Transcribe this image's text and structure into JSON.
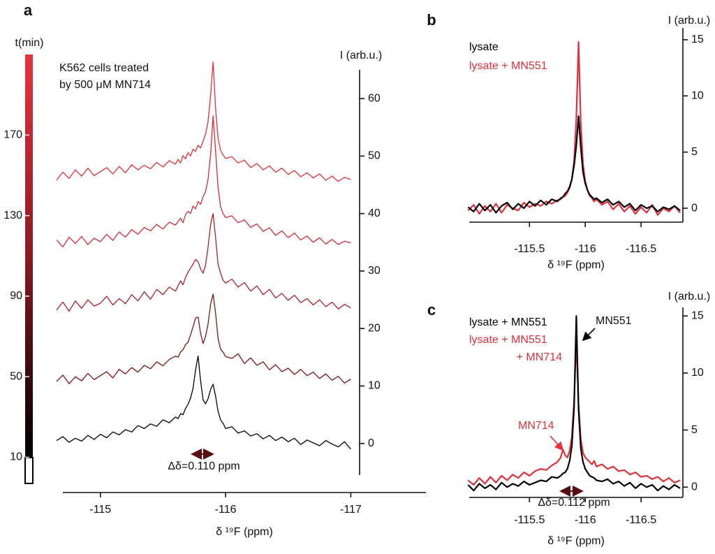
{
  "chart_data": [
    {
      "type": "line",
      "panel": "a",
      "xlabel": "δ ¹⁹F (ppm)",
      "ylabel": "I (arb.u.)",
      "annotations": [
        "K562 cells treated",
        "by 500 μM MN714",
        "Δδ=0.110 ppm"
      ],
      "xlim": [
        -114.7,
        -117.6
      ],
      "xticks": [
        -115,
        -116,
        -117
      ],
      "ylim": [
        -5.5,
        65
      ],
      "yticks": [
        0,
        10,
        20,
        30,
        40,
        50,
        60
      ],
      "colorbar": {
        "label": "t(min)",
        "ticks": [
          10,
          50,
          90,
          130,
          170
        ],
        "lim": [
          -3,
          210
        ]
      },
      "x": [
        -114.65,
        -114.7,
        -114.75,
        -114.8,
        -114.85,
        -114.9,
        -114.95,
        -115,
        -115.05,
        -115.1,
        -115.15,
        -115.2,
        -115.25,
        -115.3,
        -115.35,
        -115.4,
        -115.45,
        -115.5,
        -115.55,
        -115.6,
        -115.62,
        -115.64,
        -115.66,
        -115.68,
        -115.7,
        -115.72,
        -115.74,
        -115.76,
        -115.78,
        -115.8,
        -115.82,
        -115.84,
        -115.86,
        -115.88,
        -115.9,
        -115.92,
        -115.94,
        -115.96,
        -115.98,
        -116,
        -116.05,
        -116.1,
        -116.15,
        -116.2,
        -116.25,
        -116.3,
        -116.35,
        -116.4,
        -116.45,
        -116.5,
        -116.55,
        -116.6,
        -116.65,
        -116.7,
        -116.75,
        -116.8,
        -116.85,
        -116.9,
        -116.95,
        -117
      ],
      "series": [
        {
          "color": "#000000",
          "values": [
            0.5,
            1.2,
            0.2,
            0.9,
            0.4,
            1.4,
            0.7,
            1.6,
            1.0,
            2.0,
            1.5,
            2.4,
            2.0,
            3.1,
            2.6,
            3.4,
            3.0,
            4.1,
            3.6,
            4.6,
            4.3,
            5.2,
            5.0,
            6.1,
            6.8,
            7.9,
            9.6,
            12.8,
            15.2,
            11.0,
            7.6,
            6.9,
            7.8,
            9.4,
            10.3,
            8.2,
            5.6,
            4.1,
            3.5,
            2.6,
            2.9,
            1.8,
            2.2,
            1.3,
            1.7,
            0.8,
            1.4,
            0.5,
            1.1,
            0.3,
            0.9,
            -0.2,
            0.6,
            0.1,
            -0.4,
            0.5,
            -0.1,
            -0.6,
            0.3,
            -1.0
          ]
        },
        {
          "color": "#7a1418",
          "values": [
            10.8,
            11.9,
            10.4,
            11.6,
            10.9,
            12.2,
            11.1,
            11.8,
            12.5,
            11.4,
            12.9,
            12.1,
            13.2,
            12.4,
            13.6,
            13.0,
            14.2,
            13.5,
            14.6,
            15.2,
            15.0,
            15.9,
            16.3,
            17.2,
            17.6,
            18.9,
            20.3,
            21.8,
            22.0,
            19.2,
            17.4,
            18.6,
            20.8,
            24.2,
            26.0,
            22.6,
            18.3,
            16.4,
            15.9,
            15.1,
            14.8,
            15.6,
            13.9,
            14.9,
            13.6,
            14.2,
            12.8,
            13.7,
            12.5,
            13.1,
            12.0,
            12.9,
            11.8,
            12.4,
            11.3,
            12.1,
            11.0,
            11.7,
            10.5,
            11.2
          ]
        },
        {
          "color": "#a8202a",
          "values": [
            23.2,
            24.6,
            23.0,
            24.8,
            23.5,
            25.0,
            23.9,
            24.4,
            25.6,
            24.1,
            25.2,
            24.3,
            25.9,
            24.8,
            26.4,
            25.1,
            26.8,
            25.9,
            27.2,
            26.5,
            27.4,
            28.3,
            27.6,
            28.9,
            29.8,
            30.5,
            31.2,
            32.0,
            31.6,
            30.4,
            29.6,
            31.0,
            34.2,
            38.1,
            40.0,
            35.8,
            31.2,
            29.6,
            28.4,
            27.9,
            28.6,
            27.2,
            28.0,
            26.5,
            27.4,
            25.9,
            26.8,
            25.3,
            26.1,
            24.9,
            25.8,
            24.5,
            25.2,
            24.1,
            25.0,
            23.8,
            24.6,
            23.4,
            24.2,
            23.6
          ]
        },
        {
          "color": "#d42b35",
          "values": [
            35.4,
            34.2,
            35.9,
            34.8,
            36.0,
            34.6,
            35.7,
            35.1,
            36.4,
            35.3,
            36.8,
            35.9,
            37.2,
            36.4,
            37.6,
            37.0,
            38.1,
            37.3,
            38.5,
            38.0,
            38.6,
            39.2,
            38.4,
            39.8,
            40.4,
            40.0,
            41.3,
            40.8,
            42.1,
            41.6,
            42.9,
            43.8,
            46.0,
            50.2,
            57.0,
            50.8,
            44.6,
            41.2,
            40.0,
            39.3,
            39.6,
            38.4,
            38.9,
            37.6,
            38.2,
            36.9,
            37.5,
            36.2,
            37.0,
            35.8,
            36.6,
            35.4,
            36.1,
            35.0,
            35.8,
            34.7,
            35.5,
            34.6,
            35.2,
            34.9
          ]
        },
        {
          "color": "#e0303a",
          "values": [
            45.8,
            47.2,
            46.1,
            47.6,
            46.5,
            47.9,
            46.6,
            47.3,
            48.0,
            46.9,
            48.2,
            47.1,
            48.5,
            47.6,
            48.4,
            47.8,
            48.9,
            48.1,
            49.2,
            48.6,
            49.4,
            48.8,
            50.1,
            49.5,
            50.6,
            50.0,
            51.2,
            50.8,
            51.9,
            51.4,
            52.6,
            53.8,
            56.0,
            60.5,
            66.4,
            58.2,
            53.1,
            51.0,
            50.2,
            49.6,
            49.9,
            48.8,
            49.3,
            48.0,
            48.7,
            47.6,
            48.3,
            47.2,
            47.9,
            46.8,
            47.5,
            46.4,
            47.1,
            46.2,
            46.9,
            45.8,
            46.5,
            45.6,
            46.3,
            45.9
          ]
        }
      ]
    },
    {
      "type": "line",
      "panel": "b",
      "xlabel": "δ ¹⁹F (ppm)",
      "ylabel": "I (arb.u.)",
      "xlim": [
        -114.96,
        -116.875
      ],
      "xticks": [
        -115.5,
        -116,
        -116.5
      ],
      "ylim": [
        -1.24,
        16.05
      ],
      "yticks": [
        0,
        5,
        10,
        15
      ],
      "x": [
        -114.95,
        -115,
        -115.05,
        -115.1,
        -115.15,
        -115.2,
        -115.25,
        -115.3,
        -115.35,
        -115.4,
        -115.45,
        -115.5,
        -115.55,
        -115.6,
        -115.65,
        -115.7,
        -115.75,
        -115.78,
        -115.8,
        -115.82,
        -115.84,
        -115.86,
        -115.88,
        -115.9,
        -115.92,
        -115.94,
        -115.96,
        -115.98,
        -116,
        -116.02,
        -116.04,
        -116.06,
        -116.08,
        -116.1,
        -116.15,
        -116.2,
        -116.25,
        -116.3,
        -116.35,
        -116.4,
        -116.45,
        -116.5,
        -116.55,
        -116.6,
        -116.65,
        -116.7,
        -116.75,
        -116.8,
        -116.85
      ],
      "series": [
        {
          "name": [
            "lysate + MN551"
          ],
          "color": "#e0303a",
          "values": [
            -0.2,
            0.3,
            -0.5,
            0.2,
            -0.3,
            0.4,
            -0.4,
            0.3,
            0.0,
            -0.2,
            0.5,
            0.1,
            0.4,
            0.2,
            0.6,
            0.4,
            0.7,
            0.8,
            1.0,
            1.1,
            1.4,
            1.8,
            2.6,
            4.2,
            8.0,
            14.8,
            7.6,
            3.9,
            2.4,
            1.6,
            1.1,
            0.9,
            0.6,
            0.8,
            0.3,
            0.6,
            -0.1,
            0.4,
            -0.3,
            0.2,
            -0.5,
            0.1,
            -0.4,
            0.3,
            -0.6,
            0.0,
            -0.3,
            0.2,
            -0.4
          ]
        },
        {
          "name": [
            "lysate"
          ],
          "color": "#000000",
          "values": [
            0.1,
            -0.3,
            0.4,
            -0.2,
            0.3,
            -0.4,
            0.2,
            0.5,
            -0.1,
            0.4,
            0.0,
            0.6,
            0.2,
            0.7,
            0.3,
            0.8,
            0.6,
            0.9,
            1.0,
            1.3,
            1.5,
            1.9,
            2.6,
            3.8,
            5.6,
            8.2,
            5.4,
            3.2,
            2.2,
            1.6,
            1.2,
            1.0,
            0.8,
            0.9,
            0.5,
            0.8,
            0.3,
            0.6,
            0.1,
            0.4,
            -0.2,
            0.3,
            0.0,
            0.2,
            -0.3,
            0.1,
            -0.1,
            0.2,
            -0.2
          ]
        }
      ]
    },
    {
      "type": "line",
      "panel": "c",
      "xlabel": "δ ¹⁹F (ppm)",
      "ylabel": "I (arb.u.)",
      "annotations": [
        "MN551",
        "MN714",
        "Δδ=0.112 ppm"
      ],
      "xlim": [
        -114.96,
        -116.875
      ],
      "xticks": [
        -115.5,
        -116,
        -116.5
      ],
      "ylim": [
        -0.9,
        15.75
      ],
      "yticks": [
        0,
        5,
        10,
        15
      ],
      "x": [
        -114.95,
        -115,
        -115.05,
        -115.1,
        -115.15,
        -115.2,
        -115.25,
        -115.3,
        -115.35,
        -115.4,
        -115.45,
        -115.5,
        -115.55,
        -115.6,
        -115.65,
        -115.7,
        -115.75,
        -115.78,
        -115.8,
        -115.82,
        -115.84,
        -115.86,
        -115.88,
        -115.9,
        -115.92,
        -115.94,
        -115.96,
        -115.98,
        -116,
        -116.02,
        -116.04,
        -116.06,
        -116.08,
        -116.1,
        -116.15,
        -116.2,
        -116.25,
        -116.3,
        -116.35,
        -116.4,
        -116.45,
        -116.5,
        -116.55,
        -116.6,
        -116.65,
        -116.7,
        -116.75,
        -116.8,
        -116.85
      ],
      "series": [
        {
          "name": [
            "lysate + MN551",
            "+ MN714"
          ],
          "color": "#e0303a",
          "values": [
            0.6,
            0.2,
            0.8,
            0.3,
            0.9,
            0.4,
            1.0,
            0.6,
            1.1,
            0.8,
            1.3,
            1.0,
            1.4,
            1.6,
            1.5,
            1.9,
            2.2,
            2.6,
            3.3,
            2.8,
            2.6,
            3.2,
            4.4,
            7.6,
            13.0,
            7.2,
            4.2,
            3.0,
            2.6,
            2.4,
            2.2,
            2.0,
            2.3,
            1.8,
            2.0,
            1.6,
            1.8,
            1.4,
            1.5,
            1.1,
            1.3,
            0.9,
            1.0,
            0.7,
            0.9,
            0.5,
            0.8,
            0.4,
            0.6
          ]
        },
        {
          "name": [
            "lysate + MN551"
          ],
          "color": "#000000",
          "values": [
            0.2,
            -0.3,
            0.3,
            -0.1,
            0.2,
            -0.2,
            0.4,
            0.0,
            0.3,
            0.1,
            0.5,
            0.2,
            0.4,
            0.6,
            0.5,
            0.9,
            0.8,
            1.0,
            1.2,
            1.3,
            1.6,
            2.3,
            3.6,
            7.0,
            15.0,
            6.8,
            3.4,
            2.2,
            1.6,
            1.3,
            1.0,
            0.9,
            0.8,
            0.6,
            0.5,
            0.7,
            0.3,
            0.5,
            0.1,
            0.4,
            -0.1,
            0.3,
            0.0,
            0.2,
            -0.3,
            0.1,
            -0.2,
            0.2,
            -0.1
          ]
        }
      ]
    }
  ]
}
